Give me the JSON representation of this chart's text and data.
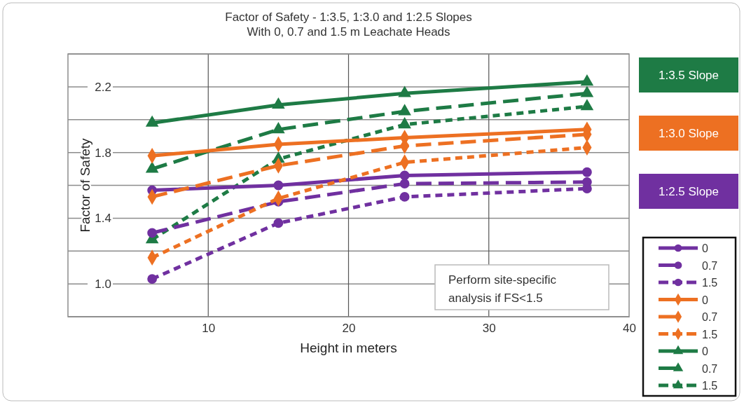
{
  "chart_data": {
    "type": "line",
    "title": "Factor of Safety - 1:3.5, 1:3.0 and 1:2.5 Slopes",
    "subtitle": "With 0, 0.7 and 1.5 m Leachate Heads",
    "xlabel": "Height in meters",
    "ylabel": "Factor of Safety",
    "x": [
      6,
      15,
      24,
      37
    ],
    "xlim": [
      0,
      40
    ],
    "xticks": [
      10,
      20,
      30,
      40
    ],
    "ylim": [
      0.8,
      2.4
    ],
    "yticks": [
      {
        "value": 0.8,
        "label": null
      },
      {
        "value": 1.0,
        "label": "1.0"
      },
      {
        "value": 1.2,
        "label": null
      },
      {
        "value": 1.4,
        "label": "1.4"
      },
      {
        "value": 1.6,
        "label": null
      },
      {
        "value": 1.8,
        "label": "1.8"
      },
      {
        "value": 2.0,
        "label": null
      },
      {
        "value": 2.2,
        "label": "2.2"
      },
      {
        "value": 2.4,
        "label": null
      }
    ],
    "grid": true,
    "legend": "right",
    "series": [
      {
        "name": "0",
        "color": "#7030a0",
        "marker": "circle",
        "line_style": "solid",
        "values": [
          1.57,
          1.6,
          1.66,
          1.68
        ]
      },
      {
        "name": "0.7",
        "color": "#7030a0",
        "marker": "circle",
        "line_style": "dashed",
        "values": [
          1.31,
          1.5,
          1.61,
          1.62
        ]
      },
      {
        "name": "1.5",
        "color": "#7030a0",
        "marker": "circle",
        "line_style": "dotted",
        "values": [
          1.03,
          1.37,
          1.53,
          1.58
        ]
      },
      {
        "name": "0",
        "color": "#ed7022",
        "marker": "diamond",
        "line_style": "solid",
        "values": [
          1.78,
          1.85,
          1.89,
          1.94
        ]
      },
      {
        "name": "0.7",
        "color": "#ed7022",
        "marker": "diamond",
        "line_style": "dashed",
        "values": [
          1.53,
          1.72,
          1.84,
          1.91
        ]
      },
      {
        "name": "1.5",
        "color": "#ed7022",
        "marker": "diamond",
        "line_style": "dotted",
        "values": [
          1.16,
          1.52,
          1.74,
          1.83
        ]
      },
      {
        "name": "0",
        "color": "#1e7b45",
        "marker": "triangle",
        "line_style": "solid",
        "values": [
          1.98,
          2.09,
          2.16,
          2.23
        ]
      },
      {
        "name": "0.7",
        "color": "#1e7b45",
        "marker": "triangle",
        "line_style": "dashed",
        "values": [
          1.7,
          1.94,
          2.05,
          2.16
        ]
      },
      {
        "name": "1.5",
        "color": "#1e7b45",
        "marker": "triangle",
        "line_style": "dotted",
        "values": [
          1.27,
          1.76,
          1.97,
          2.08
        ]
      }
    ],
    "annotations": [
      "1:3.5 Slope",
      "1:3.0 Slope",
      "1:2.5 Slope",
      "Perform site-specific analysis if FS<1.5"
    ]
  }
}
